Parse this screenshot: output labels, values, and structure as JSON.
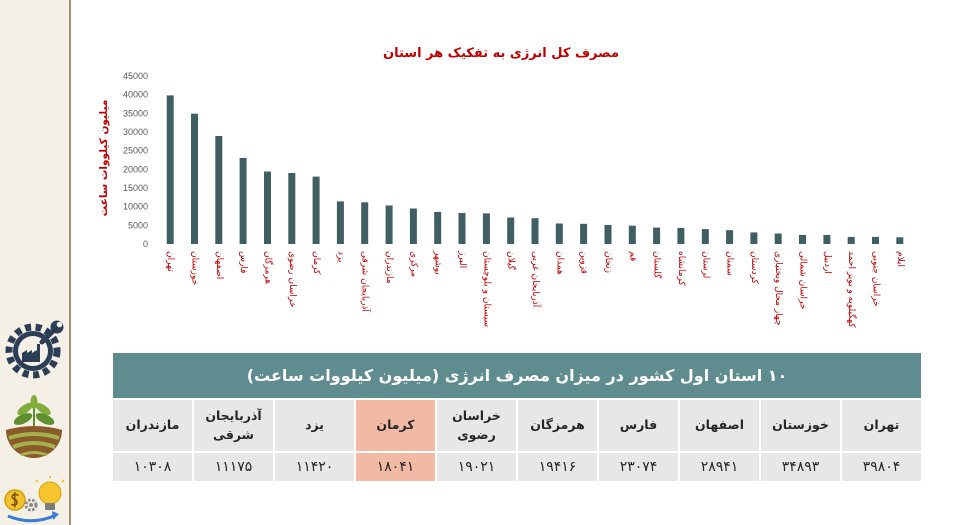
{
  "sidebar": {
    "icons": [
      "industry-gear-icon",
      "agriculture-sprout-icon",
      "finance-idea-icon"
    ]
  },
  "colors": {
    "bar": "#3f5f63",
    "title_red": "#c00000",
    "caption_bg": "#5f8c8f",
    "highlight": "#f2b9a4",
    "cell_bg": "#e7e7e7"
  },
  "chart_data": {
    "type": "bar",
    "title": "مصرف کل انرژی به تفکیک هر استان",
    "ylabel": "میلیون کیلووات ساعت",
    "ylim": [
      0,
      45000
    ],
    "yticks": [
      0,
      5000,
      10000,
      15000,
      20000,
      25000,
      30000,
      35000,
      40000,
      45000
    ],
    "grid": false,
    "categories": [
      "تهران",
      "خوزستان",
      "اصفهان",
      "فارس",
      "هرمزگان",
      "خراسان رضوی",
      "کرمان",
      "یزد",
      "آذربایجان شرقی",
      "مازندران",
      "مرکزی",
      "بوشهر",
      "البرز",
      "سیستان و بلوچستان",
      "گیلان",
      "آذربایجان غربی",
      "همدان",
      "قزوین",
      "زنجان",
      "قم",
      "گلستان",
      "کرمانشاه",
      "لرستان",
      "سمنان",
      "کردستان",
      "چهار محال وبختیاری",
      "خراسان شمالی",
      "اردبیل",
      "کهگیلویه و بویر احمد",
      "خراسان جنوبی",
      "ایلام"
    ],
    "values": [
      39804,
      34893,
      28941,
      23074,
      19416,
      19021,
      18041,
      11420,
      11175,
      10308,
      9500,
      8600,
      8300,
      8200,
      7100,
      6900,
      5500,
      5400,
      5100,
      4900,
      4400,
      4300,
      4000,
      3700,
      3100,
      2800,
      2400,
      2400,
      1900,
      1900,
      1800
    ]
  },
  "table": {
    "caption": "۱۰ استان اول کشور در میزان مصرف انرژی (میلیون کیلووات ساعت)",
    "columns": [
      {
        "header": "تهران",
        "value": "۳۹۸۰۴",
        "highlight": false
      },
      {
        "header": "خوزستان",
        "value": "۳۴۸۹۳",
        "highlight": false
      },
      {
        "header": "اصفهان",
        "value": "۲۸۹۴۱",
        "highlight": false
      },
      {
        "header": "فارس",
        "value": "۲۳۰۷۴",
        "highlight": false
      },
      {
        "header": "هرمزگان",
        "value": "۱۹۴۱۶",
        "highlight": false
      },
      {
        "header": "خراسان رضوی",
        "value": "۱۹۰۲۱",
        "highlight": false
      },
      {
        "header": "کرمان",
        "value": "۱۸۰۴۱",
        "highlight": true
      },
      {
        "header": "یزد",
        "value": "۱۱۴۲۰",
        "highlight": false
      },
      {
        "header": "آذربایجان شرقی",
        "value": "۱۱۱۷۵",
        "highlight": false
      },
      {
        "header": "مازندران",
        "value": "۱۰۳۰۸",
        "highlight": false
      }
    ]
  }
}
